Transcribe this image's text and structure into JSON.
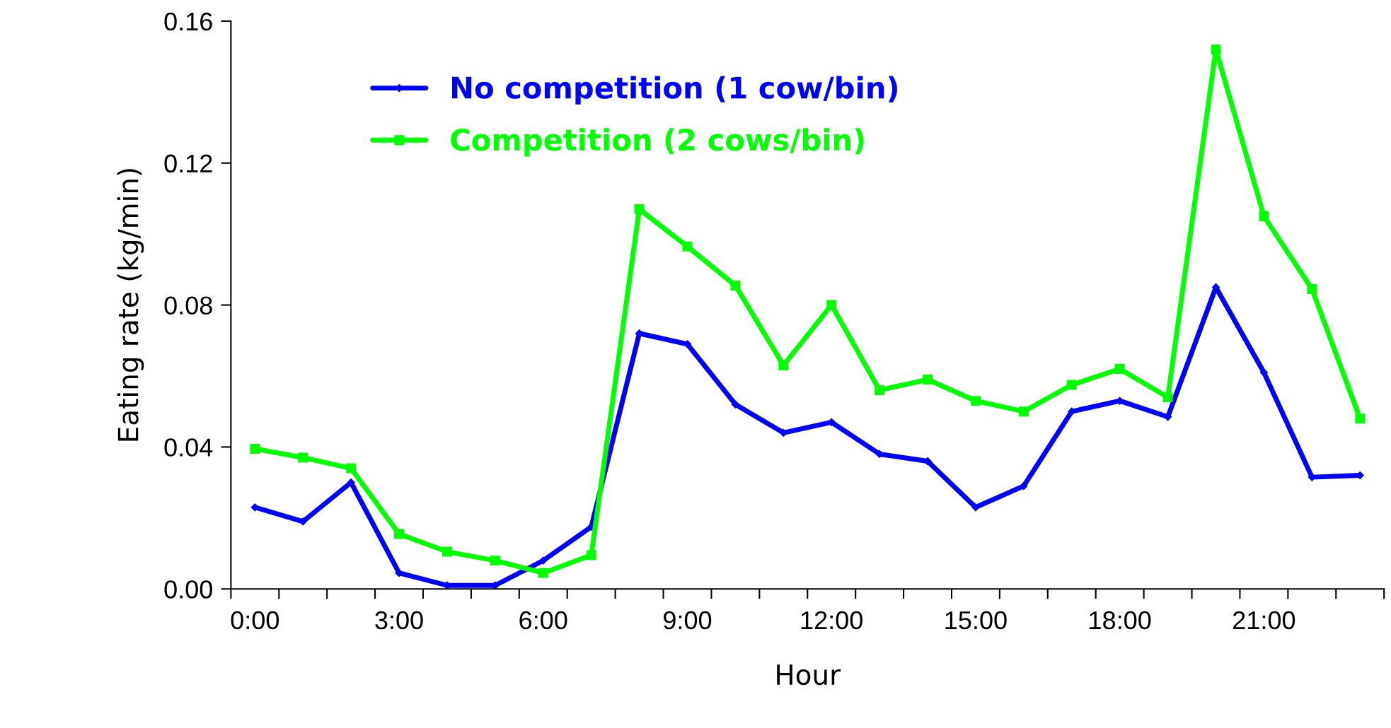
{
  "chart_data": {
    "type": "line",
    "xlabel": "Hour",
    "ylabel": "Eating rate (kg/min)",
    "categories": [
      "0:00",
      null,
      null,
      "3:00",
      null,
      null,
      "6:00",
      null,
      null,
      "9:00",
      null,
      null,
      "12:00",
      null,
      null,
      "15:00",
      null,
      null,
      "18:00",
      null,
      null,
      "21:00",
      null,
      null
    ],
    "series": [
      {
        "name": "No competition (1 cow/bin)",
        "color": "#0000ff",
        "marker": "diamond",
        "values": [
          0.023,
          0.019,
          0.03,
          0.0045,
          0.001,
          0.001,
          0.008,
          0.0175,
          0.072,
          0.069,
          0.052,
          0.044,
          0.047,
          0.038,
          0.036,
          0.023,
          0.029,
          0.05,
          0.053,
          0.0485,
          0.085,
          0.061,
          0.0315,
          0.032
        ]
      },
      {
        "name": "Competition (2 cows/bin)",
        "color": "#00ff00",
        "marker": "square",
        "values": [
          0.0395,
          0.037,
          0.034,
          0.0155,
          0.0105,
          0.008,
          0.0045,
          0.0095,
          0.107,
          0.0965,
          0.0855,
          0.063,
          0.08,
          0.056,
          0.059,
          0.053,
          0.05,
          0.0575,
          0.062,
          0.054,
          0.152,
          0.105,
          0.0845,
          0.048
        ]
      }
    ],
    "ylim": [
      0,
      0.16
    ],
    "yticks": [
      {
        "value": 0,
        "label": "0.00"
      },
      {
        "value": 0.04,
        "label": "0.04"
      },
      {
        "value": 0.08,
        "label": "0.08"
      },
      {
        "value": 0.12,
        "label": "0.12"
      },
      {
        "value": 0.16,
        "label": "0.16"
      }
    ],
    "grid": false,
    "legend": "top left",
    "line_style": "solid"
  }
}
